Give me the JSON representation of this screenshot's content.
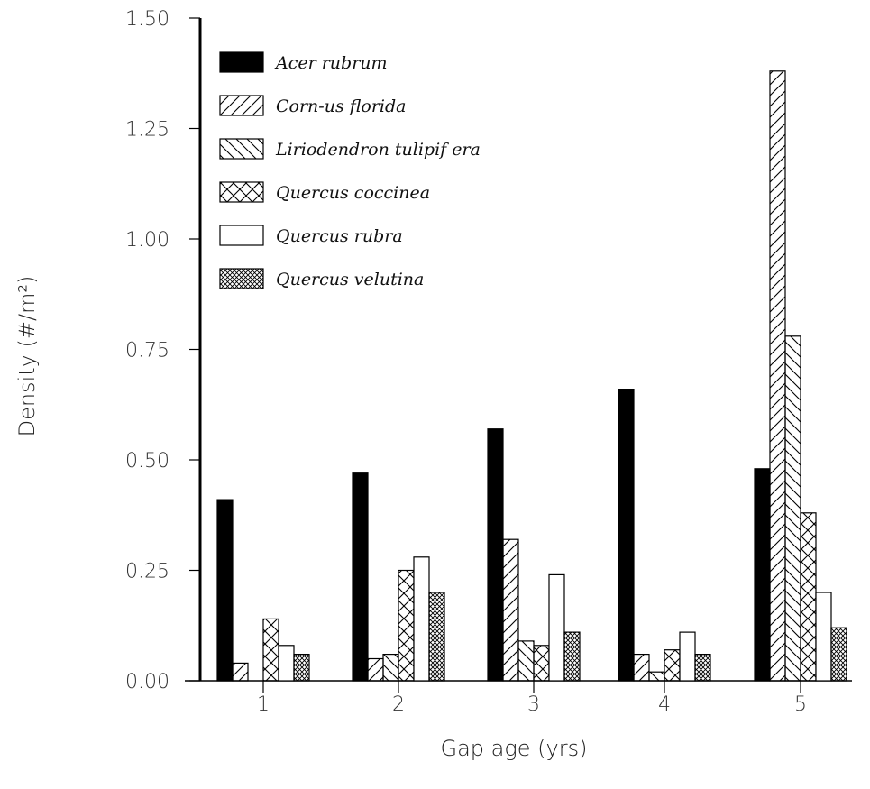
{
  "chart_data": {
    "type": "bar",
    "xlabel": "Gap age (yrs)",
    "ylabel": "Density (#/m²)",
    "ylim": [
      0,
      1.5
    ],
    "yticks": [
      "0.00",
      "0.25",
      "0.50",
      "0.75",
      "1.00",
      "1.25",
      "1.50"
    ],
    "categories": [
      "1",
      "2",
      "3",
      "4",
      "5"
    ],
    "legend_position": "top-left",
    "series": [
      {
        "name": "Acer rubrum",
        "pattern": "solid",
        "values": [
          0.41,
          0.47,
          0.57,
          0.66,
          0.48
        ]
      },
      {
        "name": "Corn-us florida",
        "pattern": "diagonal-forward",
        "values": [
          0.04,
          0.05,
          0.32,
          0.06,
          1.38
        ]
      },
      {
        "name": "Liriodendron tulipif era",
        "pattern": "diagonal-back",
        "values": [
          0.0,
          0.06,
          0.09,
          0.02,
          0.78
        ]
      },
      {
        "name": "Quercus coccinea",
        "pattern": "cross",
        "values": [
          0.14,
          0.25,
          0.08,
          0.07,
          0.38
        ]
      },
      {
        "name": "Quercus rubra",
        "pattern": "empty",
        "values": [
          0.08,
          0.28,
          0.24,
          0.11,
          0.2
        ]
      },
      {
        "name": "Quercus velutina",
        "pattern": "crosshatch",
        "values": [
          0.06,
          0.2,
          0.11,
          0.06,
          0.12
        ]
      }
    ]
  }
}
